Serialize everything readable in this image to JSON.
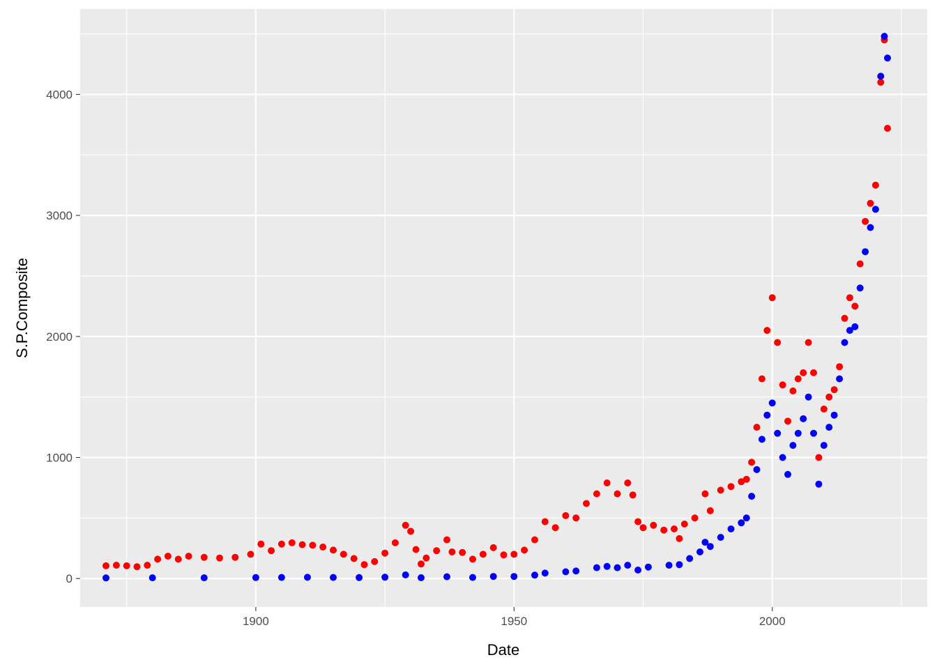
{
  "chart_data": {
    "type": "scatter",
    "title": "",
    "xlabel": "Date",
    "ylabel": "S.P.Composite",
    "xlim": [
      1866,
      2030
    ],
    "ylim": [
      -235,
      4705
    ],
    "x_ticks": [
      1900,
      1950,
      2000
    ],
    "x_tick_labels": [
      "1900",
      "1950",
      "2000"
    ],
    "y_ticks": [
      0,
      1000,
      2000,
      3000,
      4000
    ],
    "y_tick_labels": [
      "0",
      "1000",
      "2000",
      "3000",
      "4000"
    ],
    "grid": true,
    "legend": "none",
    "panel_background": "#ebebeb",
    "grid_color": "#ffffff",
    "series": [
      {
        "color": "#ff0000",
        "points": [
          [
            1871,
            105
          ],
          [
            1873,
            110
          ],
          [
            1875,
            105
          ],
          [
            1877,
            98
          ],
          [
            1879,
            110
          ],
          [
            1881,
            160
          ],
          [
            1883,
            185
          ],
          [
            1885,
            160
          ],
          [
            1887,
            185
          ],
          [
            1890,
            175
          ],
          [
            1893,
            170
          ],
          [
            1896,
            175
          ],
          [
            1899,
            200
          ],
          [
            1901,
            285
          ],
          [
            1903,
            230
          ],
          [
            1905,
            285
          ],
          [
            1907,
            295
          ],
          [
            1909,
            280
          ],
          [
            1911,
            275
          ],
          [
            1913,
            260
          ],
          [
            1915,
            235
          ],
          [
            1917,
            200
          ],
          [
            1919,
            165
          ],
          [
            1921,
            115
          ],
          [
            1923,
            140
          ],
          [
            1925,
            210
          ],
          [
            1927,
            295
          ],
          [
            1929,
            440
          ],
          [
            1930,
            390
          ],
          [
            1931,
            240
          ],
          [
            1932,
            120
          ],
          [
            1933,
            170
          ],
          [
            1935,
            230
          ],
          [
            1937,
            320
          ],
          [
            1938,
            220
          ],
          [
            1940,
            215
          ],
          [
            1942,
            160
          ],
          [
            1944,
            200
          ],
          [
            1946,
            255
          ],
          [
            1948,
            195
          ],
          [
            1950,
            200
          ],
          [
            1952,
            235
          ],
          [
            1954,
            320
          ],
          [
            1956,
            470
          ],
          [
            1958,
            420
          ],
          [
            1960,
            520
          ],
          [
            1962,
            500
          ],
          [
            1964,
            620
          ],
          [
            1966,
            700
          ],
          [
            1968,
            790
          ],
          [
            1970,
            700
          ],
          [
            1972,
            790
          ],
          [
            1973,
            690
          ],
          [
            1974,
            470
          ],
          [
            1975,
            420
          ],
          [
            1977,
            440
          ],
          [
            1979,
            400
          ],
          [
            1981,
            410
          ],
          [
            1982,
            330
          ],
          [
            1983,
            450
          ],
          [
            1985,
            500
          ],
          [
            1987,
            700
          ],
          [
            1988,
            560
          ],
          [
            1990,
            730
          ],
          [
            1992,
            760
          ],
          [
            1994,
            800
          ],
          [
            1995,
            820
          ],
          [
            1996,
            960
          ],
          [
            1997,
            1250
          ],
          [
            1998,
            1650
          ],
          [
            1999,
            2050
          ],
          [
            2000,
            2320
          ],
          [
            2001,
            1950
          ],
          [
            2002,
            1600
          ],
          [
            2003,
            1300
          ],
          [
            2004,
            1550
          ],
          [
            2005,
            1650
          ],
          [
            2006,
            1700
          ],
          [
            2007,
            1950
          ],
          [
            2008,
            1700
          ],
          [
            2009,
            1000
          ],
          [
            2010,
            1400
          ],
          [
            2011,
            1500
          ],
          [
            2012,
            1560
          ],
          [
            2013,
            1750
          ],
          [
            2014,
            2150
          ],
          [
            2015,
            2320
          ],
          [
            2016,
            2250
          ],
          [
            2017,
            2600
          ],
          [
            2018,
            2950
          ],
          [
            2019,
            3100
          ],
          [
            2020,
            3250
          ],
          [
            2021,
            4100
          ],
          [
            2021.7,
            4450
          ],
          [
            2022.3,
            3720
          ]
        ]
      },
      {
        "color": "#0000ff",
        "points": [
          [
            1871,
            5
          ],
          [
            1880,
            6
          ],
          [
            1890,
            6
          ],
          [
            1900,
            8
          ],
          [
            1905,
            9
          ],
          [
            1910,
            10
          ],
          [
            1915,
            9
          ],
          [
            1920,
            8
          ],
          [
            1925,
            11
          ],
          [
            1929,
            30
          ],
          [
            1932,
            7
          ],
          [
            1937,
            15
          ],
          [
            1942,
            9
          ],
          [
            1946,
            17
          ],
          [
            1950,
            17
          ],
          [
            1954,
            28
          ],
          [
            1956,
            45
          ],
          [
            1960,
            56
          ],
          [
            1962,
            62
          ],
          [
            1966,
            90
          ],
          [
            1968,
            100
          ],
          [
            1970,
            90
          ],
          [
            1972,
            110
          ],
          [
            1974,
            70
          ],
          [
            1976,
            95
          ],
          [
            1980,
            110
          ],
          [
            1982,
            115
          ],
          [
            1984,
            165
          ],
          [
            1986,
            220
          ],
          [
            1987,
            300
          ],
          [
            1988,
            265
          ],
          [
            1990,
            340
          ],
          [
            1992,
            410
          ],
          [
            1994,
            460
          ],
          [
            1995,
            500
          ],
          [
            1996,
            680
          ],
          [
            1997,
            900
          ],
          [
            1998,
            1150
          ],
          [
            1999,
            1350
          ],
          [
            2000,
            1450
          ],
          [
            2001,
            1200
          ],
          [
            2002,
            1000
          ],
          [
            2003,
            860
          ],
          [
            2004,
            1100
          ],
          [
            2005,
            1200
          ],
          [
            2006,
            1320
          ],
          [
            2007,
            1500
          ],
          [
            2008,
            1200
          ],
          [
            2009,
            780
          ],
          [
            2010,
            1100
          ],
          [
            2011,
            1250
          ],
          [
            2012,
            1350
          ],
          [
            2013,
            1650
          ],
          [
            2014,
            1950
          ],
          [
            2015,
            2050
          ],
          [
            2016,
            2080
          ],
          [
            2017,
            2400
          ],
          [
            2018,
            2700
          ],
          [
            2019,
            2900
          ],
          [
            2020,
            3050
          ],
          [
            2021,
            4150
          ],
          [
            2021.7,
            4480
          ],
          [
            2022.3,
            4300
          ]
        ]
      }
    ]
  }
}
